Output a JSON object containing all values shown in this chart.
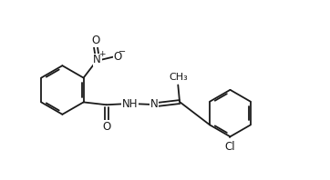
{
  "bg_color": "#ffffff",
  "line_color": "#1a1a1a",
  "line_width": 1.3,
  "font_size": 8.5,
  "figsize": [
    3.62,
    1.98
  ],
  "dpi": 100,
  "xlim": [
    0,
    10
  ],
  "ylim": [
    0,
    5.5
  ]
}
